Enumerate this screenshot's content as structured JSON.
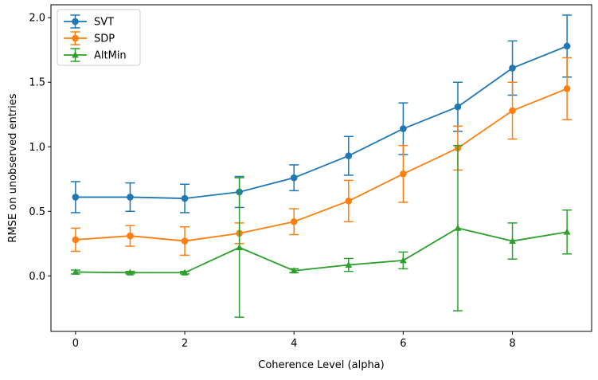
{
  "chart_data": {
    "type": "line",
    "title": "",
    "xlabel": "Coherence Level (alpha)",
    "ylabel": "RMSE on unobserved entries",
    "xlim": [
      -0.45,
      9.45
    ],
    "ylim": [
      -0.43,
      2.1
    ],
    "xticks": [
      0,
      2,
      4,
      6,
      8
    ],
    "xtick_labels": [
      "0",
      "2",
      "4",
      "6",
      "8"
    ],
    "yticks": [
      0.0,
      0.5,
      1.0,
      1.5,
      2.0
    ],
    "ytick_labels": [
      "0.0",
      "0.5",
      "1.0",
      "1.5",
      "2.0"
    ],
    "grid": false,
    "legend_position": "top-left",
    "x": [
      0,
      1,
      2,
      3,
      4,
      5,
      6,
      7,
      8,
      9
    ],
    "series": [
      {
        "name": "SVT",
        "color": "#1f77b4",
        "marker": "circle",
        "values": [
          0.61,
          0.61,
          0.6,
          0.65,
          0.76,
          0.93,
          1.14,
          1.31,
          1.61,
          1.78
        ],
        "errors": [
          0.12,
          0.11,
          0.11,
          0.12,
          0.1,
          0.15,
          0.2,
          0.19,
          0.21,
          0.24
        ]
      },
      {
        "name": "SDP",
        "color": "#ff7f0e",
        "marker": "circle",
        "values": [
          0.28,
          0.31,
          0.27,
          0.33,
          0.42,
          0.58,
          0.79,
          0.99,
          1.28,
          1.45
        ],
        "errors": [
          0.09,
          0.08,
          0.11,
          0.08,
          0.1,
          0.16,
          0.22,
          0.17,
          0.22,
          0.24
        ]
      },
      {
        "name": "AltMin",
        "color": "#2ca02c",
        "marker": "triangle",
        "values": [
          0.03,
          0.025,
          0.025,
          0.22,
          0.04,
          0.085,
          0.12,
          0.37,
          0.27,
          0.34
        ],
        "errors": [
          0.015,
          0.01,
          0.01,
          0.54,
          0.015,
          0.05,
          0.065,
          0.64,
          0.14,
          0.17
        ]
      }
    ]
  }
}
